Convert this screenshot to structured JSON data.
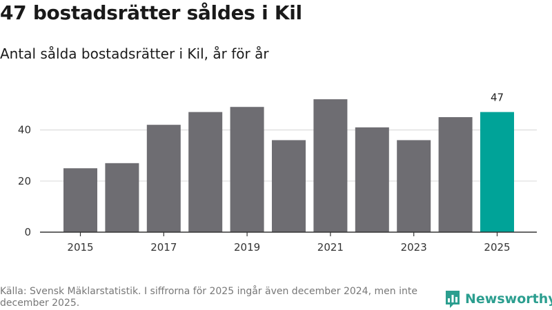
{
  "header": {
    "title": "47 bostadsrätter såldes i Kil",
    "subtitle": "Antal sålda bostadsrätter i Kil, år för år"
  },
  "chart_data": {
    "type": "bar",
    "title": "47 bostadsrätter såldes i Kil",
    "subtitle": "Antal sålda bostadsrätter i Kil, år för år",
    "xlabel": "",
    "ylabel": "",
    "categories": [
      "2015",
      "2016",
      "2017",
      "2018",
      "2019",
      "2020",
      "2021",
      "2022",
      "2023",
      "2024",
      "2025"
    ],
    "values": [
      25,
      27,
      42,
      47,
      49,
      36,
      52,
      41,
      36,
      45,
      47
    ],
    "x_tick_labels": [
      "2015",
      "2017",
      "2019",
      "2021",
      "2023",
      "2025"
    ],
    "y_ticks": [
      0,
      20,
      40
    ],
    "ylim": [
      0,
      58
    ],
    "grid": true,
    "highlight": {
      "category": "2025",
      "label": "47"
    },
    "colors": {
      "bar": "#6e6d72",
      "highlight": "#00a398",
      "grid": "#dddddd",
      "axis": "#333333"
    }
  },
  "footer": {
    "source": "Källa: Svensk Mäklarstatistik. I siffrorna för 2025 ingår även december 2024, men inte december 2025."
  },
  "logo": {
    "text": "Newsworthy",
    "icon": "bar-chart-logo-icon",
    "color": "#2b9e8f"
  }
}
